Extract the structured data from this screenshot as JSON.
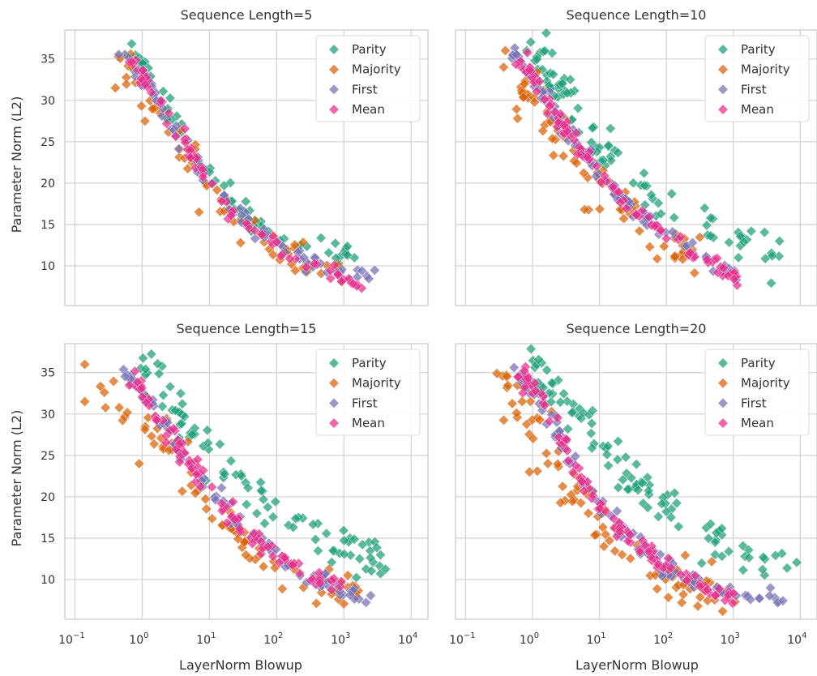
{
  "chart_data": {
    "type": "scatter",
    "x_scale": "log",
    "y_scale": "linear",
    "xlabel": "LayerNorm Blowup",
    "ylabel": "Parameter Norm (L2)",
    "xlim_log10": [
      -1.15,
      4.25
    ],
    "ylim": [
      5.2,
      38.5
    ],
    "x_ticks": [
      {
        "exp": -1,
        "label": "10",
        "sup": "−1"
      },
      {
        "exp": 0,
        "label": "10",
        "sup": "0"
      },
      {
        "exp": 1,
        "label": "10",
        "sup": "1"
      },
      {
        "exp": 2,
        "label": "10",
        "sup": "2"
      },
      {
        "exp": 3,
        "label": "10",
        "sup": "3"
      },
      {
        "exp": 4,
        "label": "10",
        "sup": "4"
      }
    ],
    "y_ticks": [
      10,
      15,
      20,
      25,
      30,
      35
    ],
    "grid": true,
    "shared_x": true,
    "shared_y": true,
    "marker": "diamond",
    "legend_position": "top-right",
    "series_styles": [
      {
        "name": "Parity",
        "color": "#1b9e77"
      },
      {
        "name": "Majority",
        "color": "#d95f02"
      },
      {
        "name": "First",
        "color": "#7570b3"
      },
      {
        "name": "Mean",
        "color": "#e7298a"
      }
    ],
    "panels": [
      {
        "title": "Sequence Length=5",
        "series": [
          {
            "name": "Parity",
            "anchors": [
              [
                0.6,
                35.8
              ],
              [
                1.0,
                34
              ],
              [
                2,
                30
              ],
              [
                4,
                26
              ],
              [
                8,
                22
              ],
              [
                20,
                17.8
              ],
              [
                50,
                15.2
              ],
              [
                150,
                13
              ],
              [
                500,
                11.6
              ],
              [
                1500,
                10.5
              ]
            ],
            "n": 70,
            "spread": 0.7
          },
          {
            "name": "Majority",
            "anchors": [
              [
                0.4,
                35
              ],
              [
                0.8,
                32
              ],
              [
                2,
                28
              ],
              [
                5,
                23
              ],
              [
                10,
                20
              ],
              [
                30,
                15
              ],
              [
                100,
                12
              ],
              [
                300,
                9.5
              ],
              [
                1000,
                8.5
              ]
            ],
            "n": 60,
            "spread": 1.3
          },
          {
            "name": "First",
            "anchors": [
              [
                0.5,
                35.6
              ],
              [
                1.0,
                33
              ],
              [
                2,
                29
              ],
              [
                4,
                25
              ],
              [
                8,
                21.5
              ],
              [
                20,
                17
              ],
              [
                60,
                14
              ],
              [
                200,
                11
              ],
              [
                800,
                9.5
              ],
              [
                3000,
                9.3
              ]
            ],
            "n": 75,
            "spread": 0.5
          },
          {
            "name": "Mean",
            "anchors": [
              [
                0.6,
                35.5
              ],
              [
                1.0,
                33
              ],
              [
                2,
                29
              ],
              [
                4,
                25
              ],
              [
                8,
                21.5
              ],
              [
                20,
                17
              ],
              [
                60,
                13.5
              ],
              [
                200,
                10.8
              ],
              [
                800,
                9.2
              ],
              [
                2000,
                7
              ]
            ],
            "n": 75,
            "spread": 0.5
          }
        ],
        "outliers": [
          {
            "series": "Majority",
            "x": 7,
            "y": 16.5
          },
          {
            "series": "Majority",
            "x": 1.1,
            "y": 27.5
          },
          {
            "series": "Majority",
            "x": 0.4,
            "y": 31.5
          }
        ]
      },
      {
        "title": "Sequence Length=10",
        "series": [
          {
            "name": "Parity",
            "anchors": [
              [
                0.9,
                36
              ],
              [
                1.5,
                34
              ],
              [
                3,
                31
              ],
              [
                6,
                27
              ],
              [
                12,
                24
              ],
              [
                30,
                20
              ],
              [
                100,
                17
              ],
              [
                400,
                15
              ],
              [
                1500,
                13
              ],
              [
                5000,
                11.3
              ]
            ],
            "n": 90,
            "spread": 1.4
          },
          {
            "name": "Majority",
            "anchors": [
              [
                0.35,
                35.5
              ],
              [
                0.7,
                32
              ],
              [
                2,
                27
              ],
              [
                4,
                23
              ],
              [
                10,
                20
              ],
              [
                30,
                16
              ],
              [
                100,
                12.5
              ],
              [
                300,
                10.5
              ]
            ],
            "n": 75,
            "spread": 1.6
          },
          {
            "name": "First",
            "anchors": [
              [
                0.55,
                35.8
              ],
              [
                1.0,
                33
              ],
              [
                2,
                29
              ],
              [
                4,
                25.5
              ],
              [
                8,
                22
              ],
              [
                20,
                18.5
              ],
              [
                60,
                15
              ],
              [
                200,
                12
              ],
              [
                700,
                9.5
              ],
              [
                1500,
                8.2
              ]
            ],
            "n": 95,
            "spread": 0.5
          },
          {
            "name": "Mean",
            "anchors": [
              [
                0.55,
                35.5
              ],
              [
                1.0,
                33
              ],
              [
                2,
                29
              ],
              [
                4,
                25.5
              ],
              [
                8,
                22
              ],
              [
                20,
                18.5
              ],
              [
                60,
                15
              ],
              [
                200,
                12
              ],
              [
                700,
                9.5
              ],
              [
                1400,
                8
              ]
            ],
            "n": 95,
            "spread": 0.5
          }
        ],
        "outliers": [
          {
            "series": "Majority",
            "x": 0.6,
            "y": 27.8
          },
          {
            "series": "Majority",
            "x": 6,
            "y": 16.8
          },
          {
            "series": "Parity",
            "x": 3800,
            "y": 11.2
          }
        ]
      },
      {
        "title": "Sequence Length=15",
        "series": [
          {
            "name": "Parity",
            "anchors": [
              [
                1.0,
                36.3
              ],
              [
                2,
                34
              ],
              [
                4,
                30
              ],
              [
                8,
                26.5
              ],
              [
                20,
                23
              ],
              [
                50,
                20
              ],
              [
                150,
                17.5
              ],
              [
                500,
                15
              ],
              [
                1500,
                13.5
              ],
              [
                4500,
                12.2
              ]
            ],
            "n": 90,
            "spread": 1.4
          },
          {
            "name": "Majority",
            "anchors": [
              [
                0.2,
                35
              ],
              [
                0.5,
                31
              ],
              [
                1.5,
                28
              ],
              [
                3,
                24
              ],
              [
                8,
                20
              ],
              [
                20,
                16
              ],
              [
                50,
                13
              ],
              [
                200,
                10.5
              ],
              [
                700,
                9
              ],
              [
                1800,
                8
              ]
            ],
            "n": 75,
            "spread": 1.6
          },
          {
            "name": "First",
            "anchors": [
              [
                0.5,
                35.5
              ],
              [
                1.0,
                33
              ],
              [
                2,
                29
              ],
              [
                4,
                25
              ],
              [
                10,
                21
              ],
              [
                25,
                17
              ],
              [
                80,
                13.5
              ],
              [
                300,
                10.5
              ],
              [
                1200,
                8.5
              ],
              [
                2800,
                7.6
              ]
            ],
            "n": 95,
            "spread": 0.5
          },
          {
            "name": "Mean",
            "anchors": [
              [
                0.7,
                35.5
              ],
              [
                1.0,
                33
              ],
              [
                2,
                29
              ],
              [
                4,
                25
              ],
              [
                10,
                21
              ],
              [
                25,
                17
              ],
              [
                80,
                13.5
              ],
              [
                300,
                10.5
              ],
              [
                1000,
                8.8
              ]
            ],
            "n": 95,
            "spread": 0.5
          }
        ],
        "outliers": [
          {
            "series": "Majority",
            "x": 0.14,
            "y": 36
          },
          {
            "series": "Majority",
            "x": 0.14,
            "y": 31.5
          },
          {
            "series": "Majority",
            "x": 0.9,
            "y": 24
          }
        ]
      },
      {
        "title": "Sequence Length=20",
        "series": [
          {
            "name": "Parity",
            "anchors": [
              [
                0.9,
                36.5
              ],
              [
                2,
                33
              ],
              [
                5,
                29
              ],
              [
                12,
                26
              ],
              [
                30,
                22
              ],
              [
                80,
                20
              ],
              [
                200,
                17
              ],
              [
                600,
                15
              ],
              [
                2000,
                13
              ],
              [
                10000,
                11
              ]
            ],
            "n": 100,
            "spread": 1.3
          },
          {
            "name": "Majority",
            "anchors": [
              [
                0.3,
                35
              ],
              [
                0.7,
                30
              ],
              [
                1.5,
                26
              ],
              [
                4,
                21
              ],
              [
                10,
                17
              ],
              [
                30,
                13.5
              ],
              [
                100,
                11
              ],
              [
                300,
                9.5
              ],
              [
                1000,
                8.5
              ]
            ],
            "n": 90,
            "spread": 1.8
          },
          {
            "name": "First",
            "anchors": [
              [
                0.5,
                35.8
              ],
              [
                1.0,
                33
              ],
              [
                2,
                29
              ],
              [
                4,
                24
              ],
              [
                10,
                19
              ],
              [
                30,
                15
              ],
              [
                100,
                11.5
              ],
              [
                400,
                9.3
              ],
              [
                1500,
                8
              ],
              [
                5000,
                7.7
              ]
            ],
            "n": 100,
            "spread": 0.5
          },
          {
            "name": "Mean",
            "anchors": [
              [
                0.6,
                35.5
              ],
              [
                1.0,
                33
              ],
              [
                2,
                29
              ],
              [
                4,
                24
              ],
              [
                10,
                19
              ],
              [
                30,
                15
              ],
              [
                100,
                11.5
              ],
              [
                400,
                9.3
              ],
              [
                1300,
                7.5
              ]
            ],
            "n": 100,
            "spread": 0.5
          }
        ],
        "outliers": [
          {
            "series": "Majority",
            "x": 0.9,
            "y": 23
          },
          {
            "series": "Majority",
            "x": 0.7,
            "y": 31.5
          },
          {
            "series": "Parity",
            "x": 2800,
            "y": 12.7
          }
        ]
      }
    ]
  }
}
